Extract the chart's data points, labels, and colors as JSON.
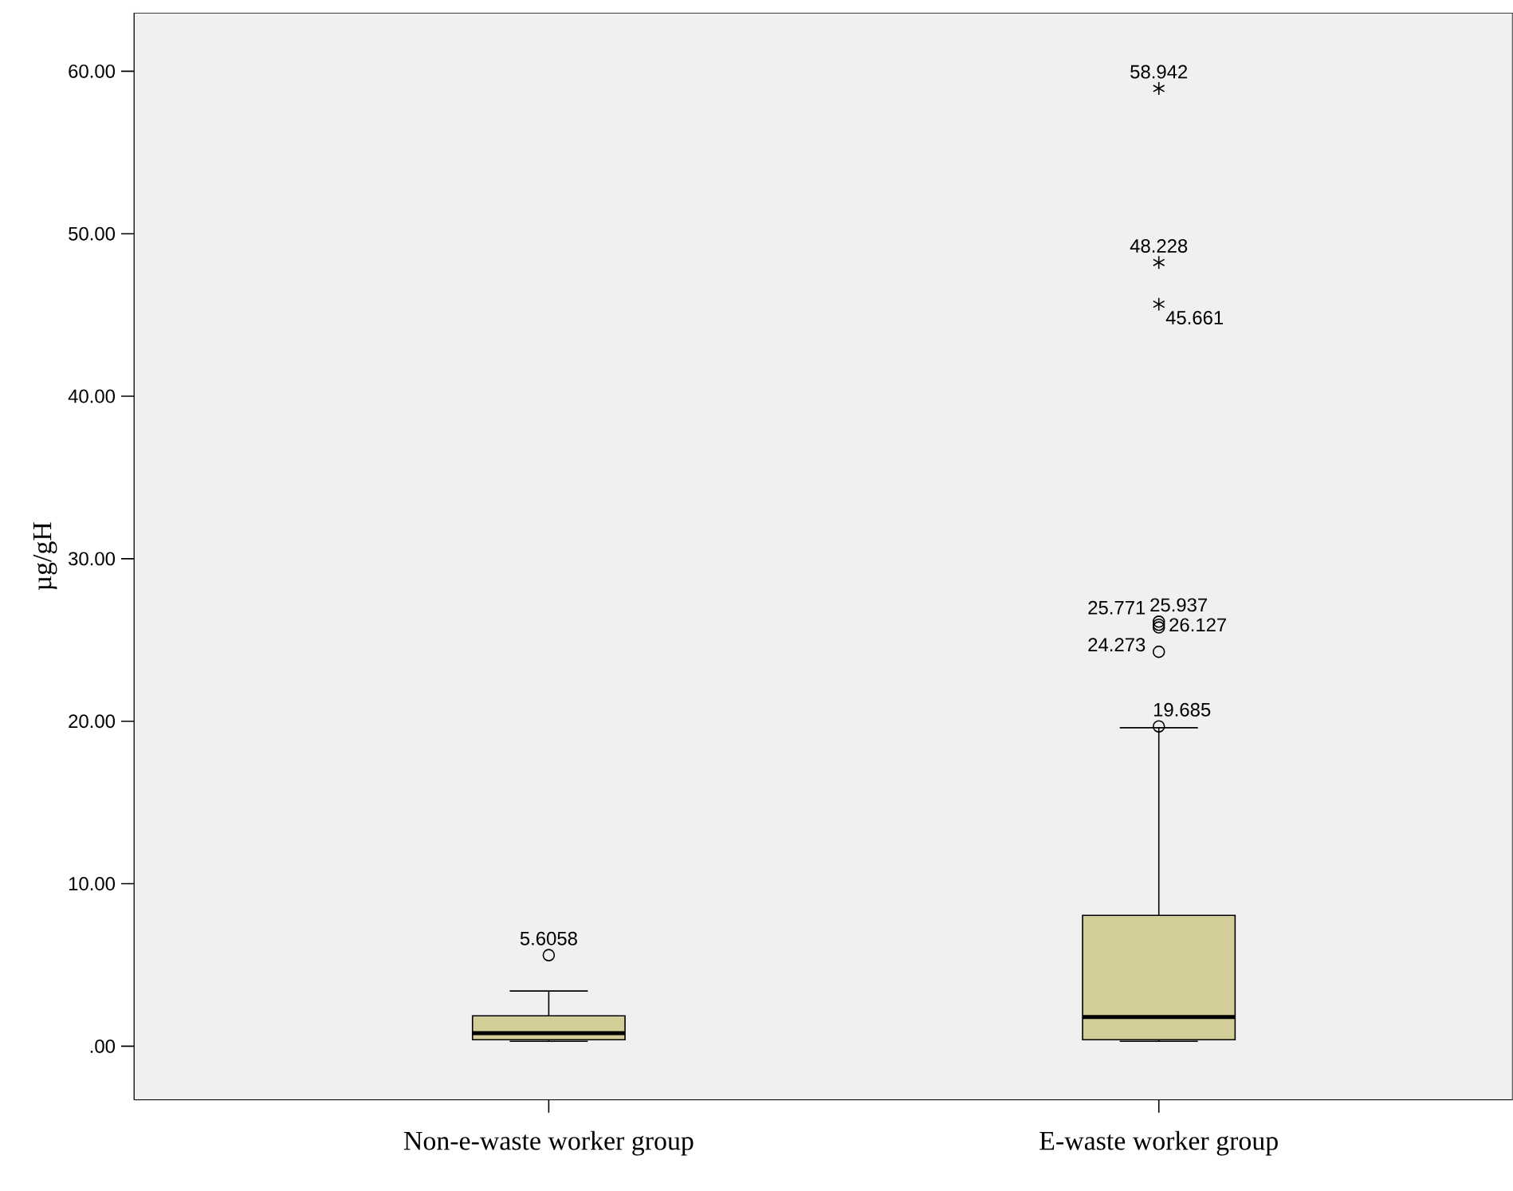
{
  "chart_data": {
    "type": "box",
    "ylabel": "µg/gH",
    "categories": [
      "Non-e-waste worker group",
      "E-waste worker group"
    ],
    "boxes": [
      {
        "low": 0.3,
        "q1": 0.4,
        "median": 0.8,
        "q3": 1.87,
        "high": 3.4,
        "outliers": [
          5.6058
        ]
      },
      {
        "low": 0.3,
        "q1": 0.4,
        "median": 1.8,
        "q3": 8.05,
        "high": 19.6,
        "outliers": [
          19.685,
          24.273,
          25.771,
          25.937,
          26.127,
          45.661,
          48.228,
          58.942
        ]
      }
    ],
    "color": "#d3ce97",
    "ylim": [
      -3.3,
      63.6
    ],
    "yticks": [
      {
        "value": 0,
        "label": ".00"
      },
      {
        "value": 10,
        "label": "10.00"
      },
      {
        "value": 20,
        "label": "20.00"
      },
      {
        "value": 30,
        "label": "30.00"
      },
      {
        "value": 40,
        "label": "40.00"
      },
      {
        "value": 50,
        "label": "50.00"
      },
      {
        "value": 60,
        "label": "60.00"
      }
    ],
    "grid": false,
    "annotations": [
      "5.6058",
      "19.685",
      "24.273",
      "25.771",
      "25.937",
      "26.127",
      "45.661",
      "48.228",
      "58.942"
    ]
  }
}
